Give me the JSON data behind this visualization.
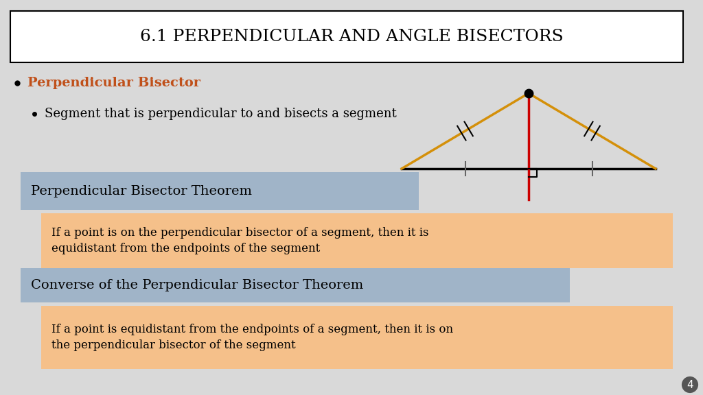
{
  "title": "6.1 PERPENDICULAR AND ANGLE BISECTORS",
  "bg_color": "#d9d9d9",
  "title_box_color": "#ffffff",
  "title_fontsize": 18,
  "bullet1_text": "Perpendicular Bisector",
  "bullet1_color": "#c0501a",
  "bullet2_text": "Segment that is perpendicular to and bisects a segment",
  "theorem_box_color": "#a0b4c8",
  "theorem_title": "Perpendicular Bisector Theorem",
  "theorem_body_color": "#f5c08a",
  "theorem_body": "If a point is on the perpendicular bisector of a segment, then it is\nequidistant from the endpoints of the segment",
  "converse_box_color": "#a0b4c8",
  "converse_title": "Converse of the Perpendicular Bisector Theorem",
  "converse_body_color": "#f5c08a",
  "converse_body": "If a point is equidistant from the endpoints of a segment, then it is on\nthe perpendicular bisector of the segment",
  "page_num": "4",
  "triangle_color": "#d4900a",
  "baseline_color": "#000000",
  "bisector_color": "#cc0000",
  "tick_color": "#666666"
}
